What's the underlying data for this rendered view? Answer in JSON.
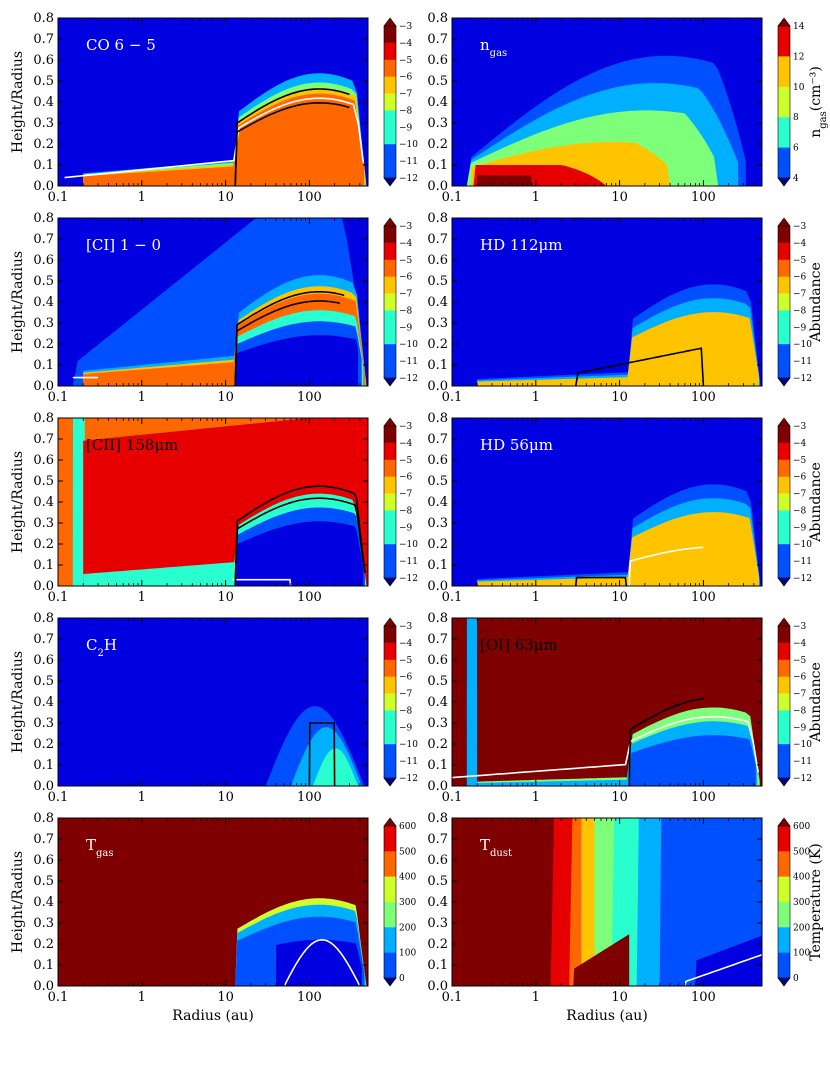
{
  "figure": {
    "colormap": [
      "#00007f",
      "#0000e0",
      "#0050ff",
      "#00b0ff",
      "#29ffce",
      "#7dff7a",
      "#ceff29",
      "#ffc400",
      "#ff6800",
      "#e60000",
      "#7f0000"
    ],
    "x_axis": {
      "label": "Radius (au)",
      "scale": "log",
      "range": [
        0.1,
        500
      ],
      "ticks": [
        "0.1",
        "1",
        "10",
        "100"
      ]
    },
    "y_axis": {
      "label": "Height/Radius",
      "range": [
        0,
        0.8
      ],
      "ticks": [
        "0.0",
        "0.1",
        "0.2",
        "0.3",
        "0.4",
        "0.5",
        "0.6",
        "0.7",
        "0.8"
      ]
    }
  },
  "chart_data": [
    {
      "type": "heatmap",
      "label": "CO 6 − 5",
      "label_color": "#ffffff",
      "colorbar": {
        "range": [
          -12,
          -3
        ],
        "ticks": [
          "−3",
          "−4",
          "−5",
          "−6",
          "−7",
          "−8",
          "−9",
          "−10",
          "−11",
          "−12"
        ],
        "label": ""
      },
      "xlabel": "",
      "ylabel": "Height/Radius"
    },
    {
      "type": "heatmap",
      "label": "n",
      "label_sub": "gas",
      "label_color": "#ffffff",
      "colorbar": {
        "range": [
          4,
          14
        ],
        "ticks": [
          "14",
          "12",
          "10",
          "8",
          "6",
          "4"
        ],
        "label": "n",
        "label_sub": "gas",
        "label_rest": "(cm⁻³)"
      },
      "xlabel": "",
      "ylabel": ""
    },
    {
      "type": "heatmap",
      "label": "[CI] 1 − 0",
      "label_color": "#ffffff",
      "colorbar": {
        "range": [
          -12,
          -3
        ],
        "ticks": [
          "−3",
          "−4",
          "−5",
          "−6",
          "−7",
          "−8",
          "−9",
          "−10",
          "−11",
          "−12"
        ],
        "label": ""
      },
      "xlabel": "",
      "ylabel": "Height/Radius"
    },
    {
      "type": "heatmap",
      "label": "HD 112μm",
      "label_color": "#ffffff",
      "colorbar": {
        "range": [
          -12,
          -3
        ],
        "ticks": [
          "−3",
          "−4",
          "−5",
          "−6",
          "−7",
          "−8",
          "−9",
          "−10",
          "−11",
          "−12"
        ],
        "label": "Abundance"
      },
      "xlabel": "",
      "ylabel": ""
    },
    {
      "type": "heatmap",
      "label": "[CII] 158μm",
      "label_color": "#000000",
      "colorbar": {
        "range": [
          -12,
          -3
        ],
        "ticks": [
          "−3",
          "−4",
          "−5",
          "−6",
          "−7",
          "−8",
          "−9",
          "−10",
          "−11",
          "−12"
        ],
        "label": ""
      },
      "xlabel": "",
      "ylabel": "Height/Radius"
    },
    {
      "type": "heatmap",
      "label": "HD 56μm",
      "label_color": "#ffffff",
      "colorbar": {
        "range": [
          -12,
          -3
        ],
        "ticks": [
          "−3",
          "−4",
          "−5",
          "−6",
          "−7",
          "−8",
          "−9",
          "−10",
          "−11",
          "−12"
        ],
        "label": "Abundance"
      },
      "xlabel": "",
      "ylabel": ""
    },
    {
      "type": "heatmap",
      "label": "C",
      "label_sub": "2",
      "label_rest": "H",
      "label_color": "#ffffff",
      "colorbar": {
        "range": [
          -12,
          -3
        ],
        "ticks": [
          "−3",
          "−4",
          "−5",
          "−6",
          "−7",
          "−8",
          "−9",
          "−10",
          "−11",
          "−12"
        ],
        "label": ""
      },
      "xlabel": "",
      "ylabel": "Height/Radius"
    },
    {
      "type": "heatmap",
      "label": "[OI] 63μm",
      "label_color": "#000000",
      "colorbar": {
        "range": [
          -12,
          -3
        ],
        "ticks": [
          "−3",
          "−4",
          "−5",
          "−6",
          "−7",
          "−8",
          "−9",
          "−10",
          "−11",
          "−12"
        ],
        "label": "Abundance"
      },
      "xlabel": "",
      "ylabel": ""
    },
    {
      "type": "heatmap",
      "label": "T",
      "label_sub": "gas",
      "label_color": "#ffffff",
      "colorbar": {
        "range": [
          0,
          600
        ],
        "ticks": [
          "600",
          "500",
          "400",
          "300",
          "200",
          "100",
          "0"
        ],
        "label": ""
      },
      "xlabel": "Radius (au)",
      "ylabel": "Height/Radius"
    },
    {
      "type": "heatmap",
      "label": "T",
      "label_sub": "dust",
      "label_color": "#ffffff",
      "colorbar": {
        "range": [
          0,
          600
        ],
        "ticks": [
          "600",
          "500",
          "400",
          "300",
          "200",
          "100",
          "0"
        ],
        "label": "Temperature (K)"
      },
      "xlabel": "Radius (au)",
      "ylabel": ""
    }
  ]
}
